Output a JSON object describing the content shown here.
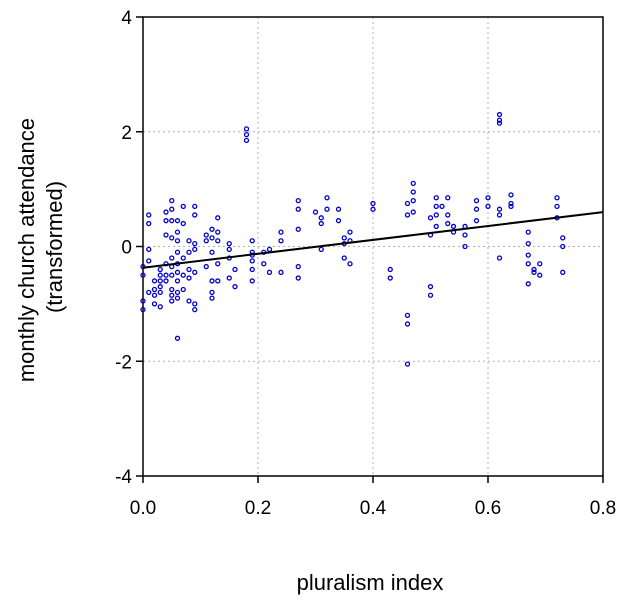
{
  "chart_data": {
    "type": "scatter",
    "xlabel": "pluralism index",
    "ylabel": [
      "monthly church attendance",
      "(transformed)"
    ],
    "xlim": [
      0,
      0.8
    ],
    "ylim": [
      -4,
      4
    ],
    "x_ticks": [
      0.0,
      0.2,
      0.4,
      0.6,
      0.8
    ],
    "x_tick_labels": [
      "0.0",
      "0.2",
      "0.4",
      "0.6",
      "0.8"
    ],
    "y_ticks": [
      -4,
      -2,
      0,
      2,
      4
    ],
    "y_tick_labels": [
      "-4",
      "-2",
      "0",
      "2",
      "4"
    ],
    "grid": true,
    "grid_style": "dotted",
    "point_color": "#0000cc",
    "line_color": "#000000",
    "fit_line": {
      "x": [
        0.0,
        0.8
      ],
      "y": [
        -0.37,
        0.6
      ]
    },
    "points": [
      [
        0.0,
        -0.35
      ],
      [
        0.0,
        -0.5
      ],
      [
        0.0,
        -0.95
      ],
      [
        0.0,
        -1.1
      ],
      [
        0.01,
        0.55
      ],
      [
        0.01,
        0.4
      ],
      [
        0.01,
        -0.05
      ],
      [
        0.01,
        -0.25
      ],
      [
        0.01,
        -0.8
      ],
      [
        0.02,
        -0.6
      ],
      [
        0.02,
        -0.75
      ],
      [
        0.02,
        -0.85
      ],
      [
        0.02,
        -1.0
      ],
      [
        0.03,
        -0.4
      ],
      [
        0.03,
        -0.5
      ],
      [
        0.03,
        -0.6
      ],
      [
        0.03,
        -0.7
      ],
      [
        0.03,
        -0.8
      ],
      [
        0.03,
        -1.05
      ],
      [
        0.04,
        0.6
      ],
      [
        0.04,
        0.45
      ],
      [
        0.04,
        0.2
      ],
      [
        0.04,
        -0.3
      ],
      [
        0.04,
        -0.5
      ],
      [
        0.04,
        -0.6
      ],
      [
        0.05,
        0.8
      ],
      [
        0.05,
        0.65
      ],
      [
        0.05,
        0.45
      ],
      [
        0.05,
        0.15
      ],
      [
        0.05,
        -0.2
      ],
      [
        0.05,
        -0.35
      ],
      [
        0.05,
        -0.5
      ],
      [
        0.05,
        -0.75
      ],
      [
        0.05,
        -0.85
      ],
      [
        0.05,
        -0.95
      ],
      [
        0.06,
        0.45
      ],
      [
        0.06,
        0.25
      ],
      [
        0.06,
        0.1
      ],
      [
        0.06,
        -0.1
      ],
      [
        0.06,
        -0.3
      ],
      [
        0.06,
        -0.45
      ],
      [
        0.06,
        -0.6
      ],
      [
        0.06,
        -0.8
      ],
      [
        0.06,
        -0.9
      ],
      [
        0.06,
        -1.6
      ],
      [
        0.07,
        0.7
      ],
      [
        0.07,
        0.4
      ],
      [
        0.07,
        -0.2
      ],
      [
        0.07,
        -0.5
      ],
      [
        0.07,
        -0.75
      ],
      [
        0.08,
        0.1
      ],
      [
        0.08,
        -0.1
      ],
      [
        0.08,
        -0.4
      ],
      [
        0.08,
        -0.55
      ],
      [
        0.08,
        -0.95
      ],
      [
        0.09,
        0.7
      ],
      [
        0.09,
        0.55
      ],
      [
        0.09,
        0.05
      ],
      [
        0.09,
        -0.05
      ],
      [
        0.09,
        -0.45
      ],
      [
        0.09,
        -1.0
      ],
      [
        0.09,
        -1.1
      ],
      [
        0.11,
        0.2
      ],
      [
        0.11,
        0.1
      ],
      [
        0.11,
        -0.35
      ],
      [
        0.12,
        0.3
      ],
      [
        0.12,
        0.15
      ],
      [
        0.12,
        -0.1
      ],
      [
        0.12,
        -0.6
      ],
      [
        0.12,
        -0.8
      ],
      [
        0.12,
        -0.9
      ],
      [
        0.13,
        0.5
      ],
      [
        0.13,
        0.25
      ],
      [
        0.13,
        0.1
      ],
      [
        0.13,
        -0.3
      ],
      [
        0.13,
        -0.6
      ],
      [
        0.15,
        0.05
      ],
      [
        0.15,
        -0.05
      ],
      [
        0.15,
        -0.2
      ],
      [
        0.15,
        -0.55
      ],
      [
        0.16,
        -0.4
      ],
      [
        0.16,
        -0.7
      ],
      [
        0.18,
        1.95
      ],
      [
        0.18,
        1.85
      ],
      [
        0.18,
        2.05
      ],
      [
        0.19,
        0.1
      ],
      [
        0.19,
        -0.1
      ],
      [
        0.19,
        -0.15
      ],
      [
        0.19,
        -0.25
      ],
      [
        0.19,
        -0.4
      ],
      [
        0.19,
        -0.6
      ],
      [
        0.21,
        -0.1
      ],
      [
        0.21,
        -0.3
      ],
      [
        0.22,
        -0.05
      ],
      [
        0.22,
        -0.45
      ],
      [
        0.24,
        0.25
      ],
      [
        0.24,
        0.1
      ],
      [
        0.24,
        -0.45
      ],
      [
        0.27,
        0.8
      ],
      [
        0.27,
        0.65
      ],
      [
        0.27,
        0.3
      ],
      [
        0.27,
        -0.35
      ],
      [
        0.27,
        -0.55
      ],
      [
        0.3,
        0.6
      ],
      [
        0.31,
        0.5
      ],
      [
        0.31,
        0.4
      ],
      [
        0.31,
        -0.05
      ],
      [
        0.32,
        0.85
      ],
      [
        0.32,
        0.65
      ],
      [
        0.34,
        0.65
      ],
      [
        0.34,
        0.45
      ],
      [
        0.35,
        0.15
      ],
      [
        0.35,
        0.05
      ],
      [
        0.35,
        -0.2
      ],
      [
        0.36,
        0.25
      ],
      [
        0.36,
        0.1
      ],
      [
        0.36,
        -0.3
      ],
      [
        0.4,
        0.75
      ],
      [
        0.4,
        0.65
      ],
      [
        0.43,
        -0.4
      ],
      [
        0.43,
        -0.55
      ],
      [
        0.46,
        0.75
      ],
      [
        0.46,
        0.55
      ],
      [
        0.46,
        -1.2
      ],
      [
        0.46,
        -1.35
      ],
      [
        0.46,
        -2.05
      ],
      [
        0.47,
        1.1
      ],
      [
        0.47,
        0.95
      ],
      [
        0.47,
        0.8
      ],
      [
        0.47,
        0.6
      ],
      [
        0.5,
        0.5
      ],
      [
        0.5,
        0.2
      ],
      [
        0.5,
        -0.7
      ],
      [
        0.5,
        -0.85
      ],
      [
        0.51,
        0.85
      ],
      [
        0.51,
        0.7
      ],
      [
        0.51,
        0.55
      ],
      [
        0.51,
        0.35
      ],
      [
        0.52,
        0.7
      ],
      [
        0.53,
        0.85
      ],
      [
        0.53,
        0.55
      ],
      [
        0.53,
        0.4
      ],
      [
        0.54,
        0.35
      ],
      [
        0.54,
        0.25
      ],
      [
        0.56,
        0.35
      ],
      [
        0.56,
        0.2
      ],
      [
        0.56,
        0.0
      ],
      [
        0.58,
        0.8
      ],
      [
        0.58,
        0.65
      ],
      [
        0.58,
        0.45
      ],
      [
        0.6,
        0.85
      ],
      [
        0.6,
        0.7
      ],
      [
        0.62,
        2.3
      ],
      [
        0.62,
        2.2
      ],
      [
        0.62,
        2.15
      ],
      [
        0.62,
        0.65
      ],
      [
        0.62,
        0.55
      ],
      [
        0.62,
        -0.2
      ],
      [
        0.64,
        0.9
      ],
      [
        0.64,
        0.75
      ],
      [
        0.64,
        0.7
      ],
      [
        0.67,
        0.25
      ],
      [
        0.67,
        0.05
      ],
      [
        0.67,
        -0.15
      ],
      [
        0.67,
        -0.3
      ],
      [
        0.67,
        -0.65
      ],
      [
        0.68,
        -0.4
      ],
      [
        0.68,
        -0.45
      ],
      [
        0.69,
        -0.3
      ],
      [
        0.69,
        -0.5
      ],
      [
        0.72,
        0.85
      ],
      [
        0.72,
        0.7
      ],
      [
        0.72,
        0.5
      ],
      [
        0.73,
        0.15
      ],
      [
        0.73,
        0.0
      ],
      [
        0.73,
        -0.45
      ]
    ]
  }
}
